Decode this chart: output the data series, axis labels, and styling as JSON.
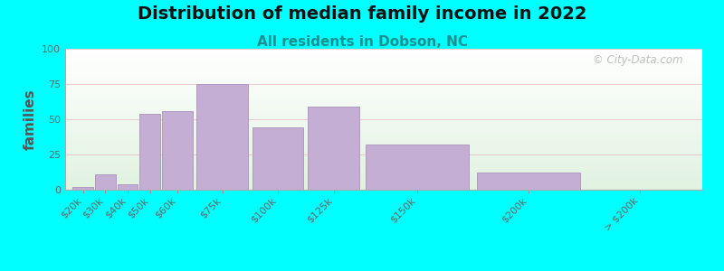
{
  "title": "Distribution of median family income in 2022",
  "subtitle": "All residents in Dobson, NC",
  "ylabel": "families",
  "background_outer": "#00FFFF",
  "bar_color": "#c4aed4",
  "bar_edge_color": "#b09ac0",
  "categories": [
    "$20k",
    "$30k",
    "$40k",
    "$50k",
    "$60k",
    "$75k",
    "$100k",
    "$125k",
    "$150k",
    "$200k",
    "> $200k"
  ],
  "values": [
    2,
    11,
    4,
    54,
    56,
    75,
    44,
    59,
    32,
    12,
    0
  ],
  "widths": [
    1,
    1,
    1,
    1,
    1,
    1.5,
    2.5,
    2.5,
    2.5,
    5,
    5
  ],
  "ylim": [
    0,
    100
  ],
  "yticks": [
    0,
    25,
    50,
    75,
    100
  ],
  "title_fontsize": 14,
  "subtitle_fontsize": 11,
  "ylabel_fontsize": 11,
  "tick_fontsize": 8,
  "watermark": "© City-Data.com",
  "grid_color": "#e8c0c8",
  "grid_alpha": 0.8,
  "ylabel_color": "#555555",
  "tick_color": "#666666",
  "title_color": "#111111",
  "subtitle_color": "#1a9090"
}
